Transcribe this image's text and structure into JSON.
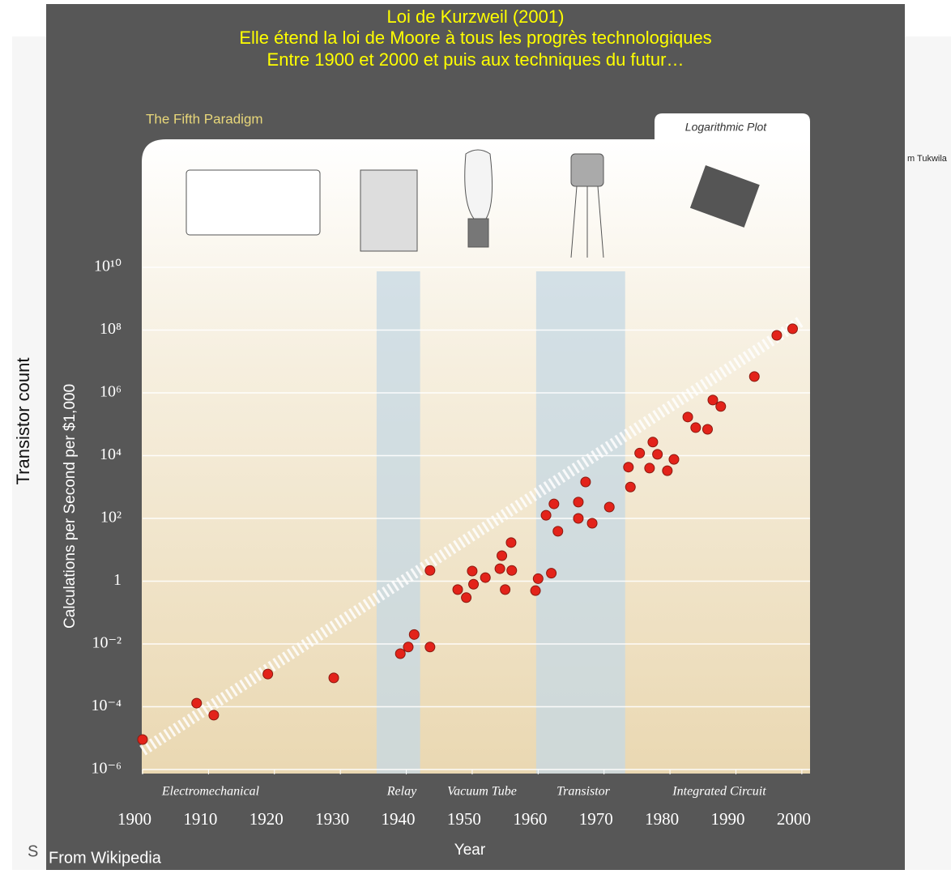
{
  "page": {
    "title_lines": [
      "Loi de Kurzweil (2001)",
      "Elle étend la loi de Moore à tous les progrès technologiques",
      "Entre 1900 et 2000 et puis aux techniques du futur…"
    ],
    "side_label": "Transistor count",
    "source": "From Wikipedia",
    "clipped_left": "S",
    "clipped_right": "m Tukwila"
  },
  "chart_data": {
    "type": "scatter",
    "title": "The Fifth Paradigm",
    "subtitle": "Logarithmic Plot",
    "x_label": "Year",
    "y_label": "Calculations per Second per $1,000",
    "log_y": true,
    "grid": true,
    "xlim": [
      1900,
      2001
    ],
    "xticks": [
      1900,
      1910,
      1920,
      1930,
      1940,
      1950,
      1960,
      1970,
      1980,
      1990,
      2000
    ],
    "ylim": [
      1e-06,
      100000000000000.0
    ],
    "yticks": [
      {
        "value": 1e-06,
        "label": "10⁻⁶"
      },
      {
        "value": 0.0001,
        "label": "10⁻⁴"
      },
      {
        "value": 0.01,
        "label": "10⁻²"
      },
      1,
      {
        "value": 100,
        "label": "10²"
      },
      {
        "value": 10000,
        "label": "10⁴"
      },
      {
        "value": 1000000,
        "label": "10⁶"
      },
      {
        "value": 100000000,
        "label": "10⁸"
      },
      {
        "value": 10000000000,
        "label": "10¹⁰"
      }
    ],
    "eras": [
      "Electromechanical",
      "Relay",
      "Vacuum Tube",
      "Transistor",
      "Integrated Circuit"
    ],
    "bands": [
      [
        1935.5,
        1942.1
      ],
      [
        1959.7,
        1973.2
      ]
    ],
    "trend": {
      "x": [
        1900,
        2000
      ],
      "values": [
        4e-06,
        200000000.0
      ]
    },
    "color": "#e3231a",
    "x": [
      1900,
      1908.2,
      1910.8,
      1919,
      1929,
      1939.1,
      1940.3,
      1941.2,
      1943.6,
      1943.6,
      1947.8,
      1949.1,
      1950,
      1950.2,
      1952,
      1954.2,
      1954.5,
      1955,
      1955.9,
      1956,
      1959.6,
      1960,
      1961.2,
      1962,
      1962.4,
      1963,
      1966.1,
      1966.1,
      1967.2,
      1968.2,
      1970.8,
      1973.7,
      1974,
      1975.4,
      1976.9,
      1977.4,
      1978.1,
      1979.6,
      1980.6,
      1982.7,
      1983.9,
      1985.7,
      1986.5,
      1987.7,
      1992.8,
      1996.2,
      1998.6
    ],
    "values": [
      9e-06,
      0.00013,
      5.4e-05,
      0.0011,
      0.00083,
      0.0049,
      0.008,
      0.02,
      0.008,
      2.2,
      0.54,
      0.3,
      2.1,
      0.8,
      1.3,
      2.5,
      6.5,
      0.54,
      17,
      2.2,
      0.5,
      1.2,
      126,
      1.8,
      290,
      39,
      330,
      100,
      1450,
      70,
      230,
      4300,
      1000,
      12000,
      4000,
      27000,
      11000,
      3300,
      7600,
      170000,
      78000,
      69000,
      590000,
      370000,
      3300000,
      68000000,
      110000000
    ]
  }
}
